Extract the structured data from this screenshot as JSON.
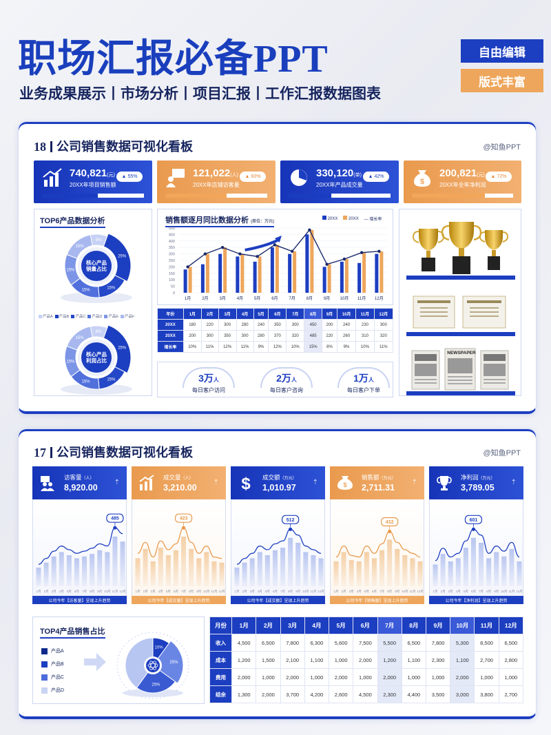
{
  "header": {
    "title": "职场汇报必备PPT",
    "subtitle": "业务成果展示丨市场分析丨项目汇报丨工作汇报数据图表",
    "tags": [
      "自由编辑",
      "版式丰富"
    ]
  },
  "watermark": "@知鱼PPT",
  "dashboard18": {
    "title_num": "18",
    "title_text": "公司销售数据可视化看板",
    "kpis": [
      {
        "value": "740,821",
        "unit": "(元)",
        "label": "20XX年项目销售额",
        "badge": "55%",
        "progress": 0.55,
        "color": "blue",
        "icon": "bar-chart-growth-icon"
      },
      {
        "value": "121,022",
        "unit": "(人)",
        "label": "20XX年店铺访客量",
        "badge": "60%",
        "progress": 0.6,
        "color": "orange",
        "icon": "presenter-icon"
      },
      {
        "value": "330,120",
        "unit": "(单)",
        "label": "20XX年产品成交量",
        "badge": "42%",
        "progress": 0.42,
        "color": "blue",
        "icon": "pie-chart-icon"
      },
      {
        "value": "200,821",
        "unit": "(元)",
        "label": "20XX年全年净利润",
        "badge": "72%",
        "progress": 0.72,
        "color": "orange",
        "icon": "money-bag-icon"
      }
    ],
    "top6": {
      "title": "TOP6产品数据分析",
      "donut1_label": [
        "核心产品",
        "销量占比"
      ],
      "donut2_label": [
        "核心产品",
        "利润占比"
      ],
      "legend": [
        "产品A",
        "产品B",
        "产品C",
        "产品D",
        "产品E",
        "产品F"
      ],
      "slice_values": [
        25,
        15,
        15,
        15,
        15,
        8
      ]
    },
    "trend": {
      "title": "销售额逐月同比数据分析",
      "unit": "(单位：万元)",
      "legend": [
        "20XX",
        "20XX",
        "增长率"
      ],
      "peak_label": "485"
    },
    "table": {
      "header": [
        "年份",
        "1月",
        "2月",
        "3月",
        "4月",
        "5月",
        "6月",
        "7月",
        "8月",
        "9月",
        "10月",
        "11月",
        "12月"
      ],
      "rows": [
        [
          "20XX",
          "180",
          "220",
          "300",
          "280",
          "240",
          "350",
          "300",
          "450",
          "200",
          "240",
          "230",
          "300"
        ],
        [
          "20XX",
          "200",
          "300",
          "350",
          "300",
          "280",
          "370",
          "320",
          "485",
          "220",
          "260",
          "310",
          "320"
        ],
        [
          "增长率",
          "10%",
          "11%",
          "12%",
          "11%",
          "9%",
          "12%",
          "10%",
          "15%",
          "8%",
          "9%",
          "10%",
          "11%"
        ]
      ]
    },
    "stats": [
      {
        "value": "3万",
        "unit": "人",
        "label": "每日客户访问"
      },
      {
        "value": "2万",
        "unit": "人",
        "label": "每日客户咨询"
      },
      {
        "value": "1万",
        "unit": "人",
        "label": "每日客户下单"
      }
    ],
    "newspaper_text": "NEWSPAPER"
  },
  "dashboard17": {
    "title_num": "17",
    "title_text": "公司销售数据可视化看板",
    "cards": [
      {
        "name": "访客量",
        "unit": "（人）",
        "value": "8,920.00",
        "peak": "485",
        "footer": "公司今年【访客量】呈现上升趋势",
        "color": "blue",
        "icon": "visitors-icon"
      },
      {
        "name": "成交量",
        "unit": "（人）",
        "value": "3,210.00",
        "peak": "423",
        "footer": "公司今年【成交量】呈现上升趋势",
        "color": "orange",
        "icon": "bar-chart-growth-icon"
      },
      {
        "name": "成交额",
        "unit": "（万元）",
        "value": "1,010.97",
        "peak": "512",
        "footer": "公司今年【成交额】呈现上升趋势",
        "color": "blue",
        "icon": "dollar-icon"
      },
      {
        "name": "销售额",
        "unit": "（万元）",
        "value": "2,711.31",
        "peak": "432",
        "footer": "公司今年【销售额】呈现上升趋势",
        "color": "orange",
        "icon": "money-bag-icon"
      },
      {
        "name": "净利润",
        "unit": "（万元）",
        "value": "3,789.05",
        "peak": "601",
        "footer": "公司今年【净利润】呈现上升趋势",
        "color": "blue",
        "icon": "trophy-icon"
      }
    ],
    "months": [
      "1月",
      "2月",
      "3月",
      "4月",
      "5月",
      "6月",
      "7月",
      "8月",
      "9月",
      "10月",
      "11月",
      "12月"
    ],
    "top4": {
      "title": "TOP4产品销售占比",
      "legend": [
        "产品A",
        "产品B",
        "产品C",
        "产品D"
      ],
      "slices": [
        {
          "label": "10%",
          "value": 10
        },
        {
          "label": "25%",
          "value": 25
        },
        {
          "label": "25%",
          "value": 25
        },
        {
          "label": "40%",
          "value": 40
        }
      ],
      "slice_labels_shown": [
        "10%",
        "25%",
        "25%"
      ]
    },
    "table": {
      "header": [
        "月份",
        "1月",
        "2月",
        "3月",
        "4月",
        "5月",
        "6月",
        "7月",
        "8月",
        "9月",
        "10月",
        "11月",
        "12月"
      ],
      "rows": [
        [
          "收入",
          "4,500",
          "6,500",
          "7,800",
          "6,300",
          "5,600",
          "7,500",
          "5,500",
          "6,500",
          "7,800",
          "5,300",
          "8,500",
          "6,500"
        ],
        [
          "成本",
          "1,200",
          "1,500",
          "2,100",
          "1,100",
          "1,000",
          "2,000",
          "1,200",
          "1,100",
          "2,300",
          "1,100",
          "2,700",
          "2,800"
        ],
        [
          "费用",
          "2,000",
          "1,000",
          "2,000",
          "1,000",
          "2,000",
          "1,000",
          "2,000",
          "1,000",
          "1,000",
          "2,000",
          "1,000",
          "1,000"
        ],
        [
          "结余",
          "1,300",
          "2,000",
          "3,700",
          "4,200",
          "2,600",
          "4,500",
          "2,300",
          "4,400",
          "3,500",
          "3,000",
          "3,800",
          "2,700"
        ]
      ]
    }
  },
  "chart_data": [
    {
      "type": "bar",
      "title": "销售额逐月同比数据分析",
      "categories": [
        "1月",
        "2月",
        "3月",
        "4月",
        "5月",
        "6月",
        "7月",
        "8月",
        "9月",
        "10月",
        "11月",
        "12月"
      ],
      "series": [
        {
          "name": "20XX",
          "values": [
            180,
            220,
            300,
            280,
            240,
            350,
            300,
            450,
            200,
            240,
            230,
            300
          ]
        },
        {
          "name": "20XX",
          "values": [
            200,
            300,
            350,
            300,
            280,
            370,
            320,
            485,
            220,
            260,
            310,
            320
          ]
        },
        {
          "name": "增长率",
          "values": [
            10,
            11,
            12,
            11,
            9,
            12,
            10,
            15,
            8,
            9,
            10,
            11
          ]
        }
      ],
      "ylim": [
        0,
        500
      ],
      "yticks": [
        0,
        50,
        100,
        150,
        200,
        250,
        300,
        350,
        400,
        450,
        500
      ]
    },
    {
      "type": "pie",
      "labels": [
        "产品A",
        "产品B",
        "产品C",
        "产品D"
      ],
      "values": [
        10,
        25,
        25,
        40
      ]
    }
  ]
}
